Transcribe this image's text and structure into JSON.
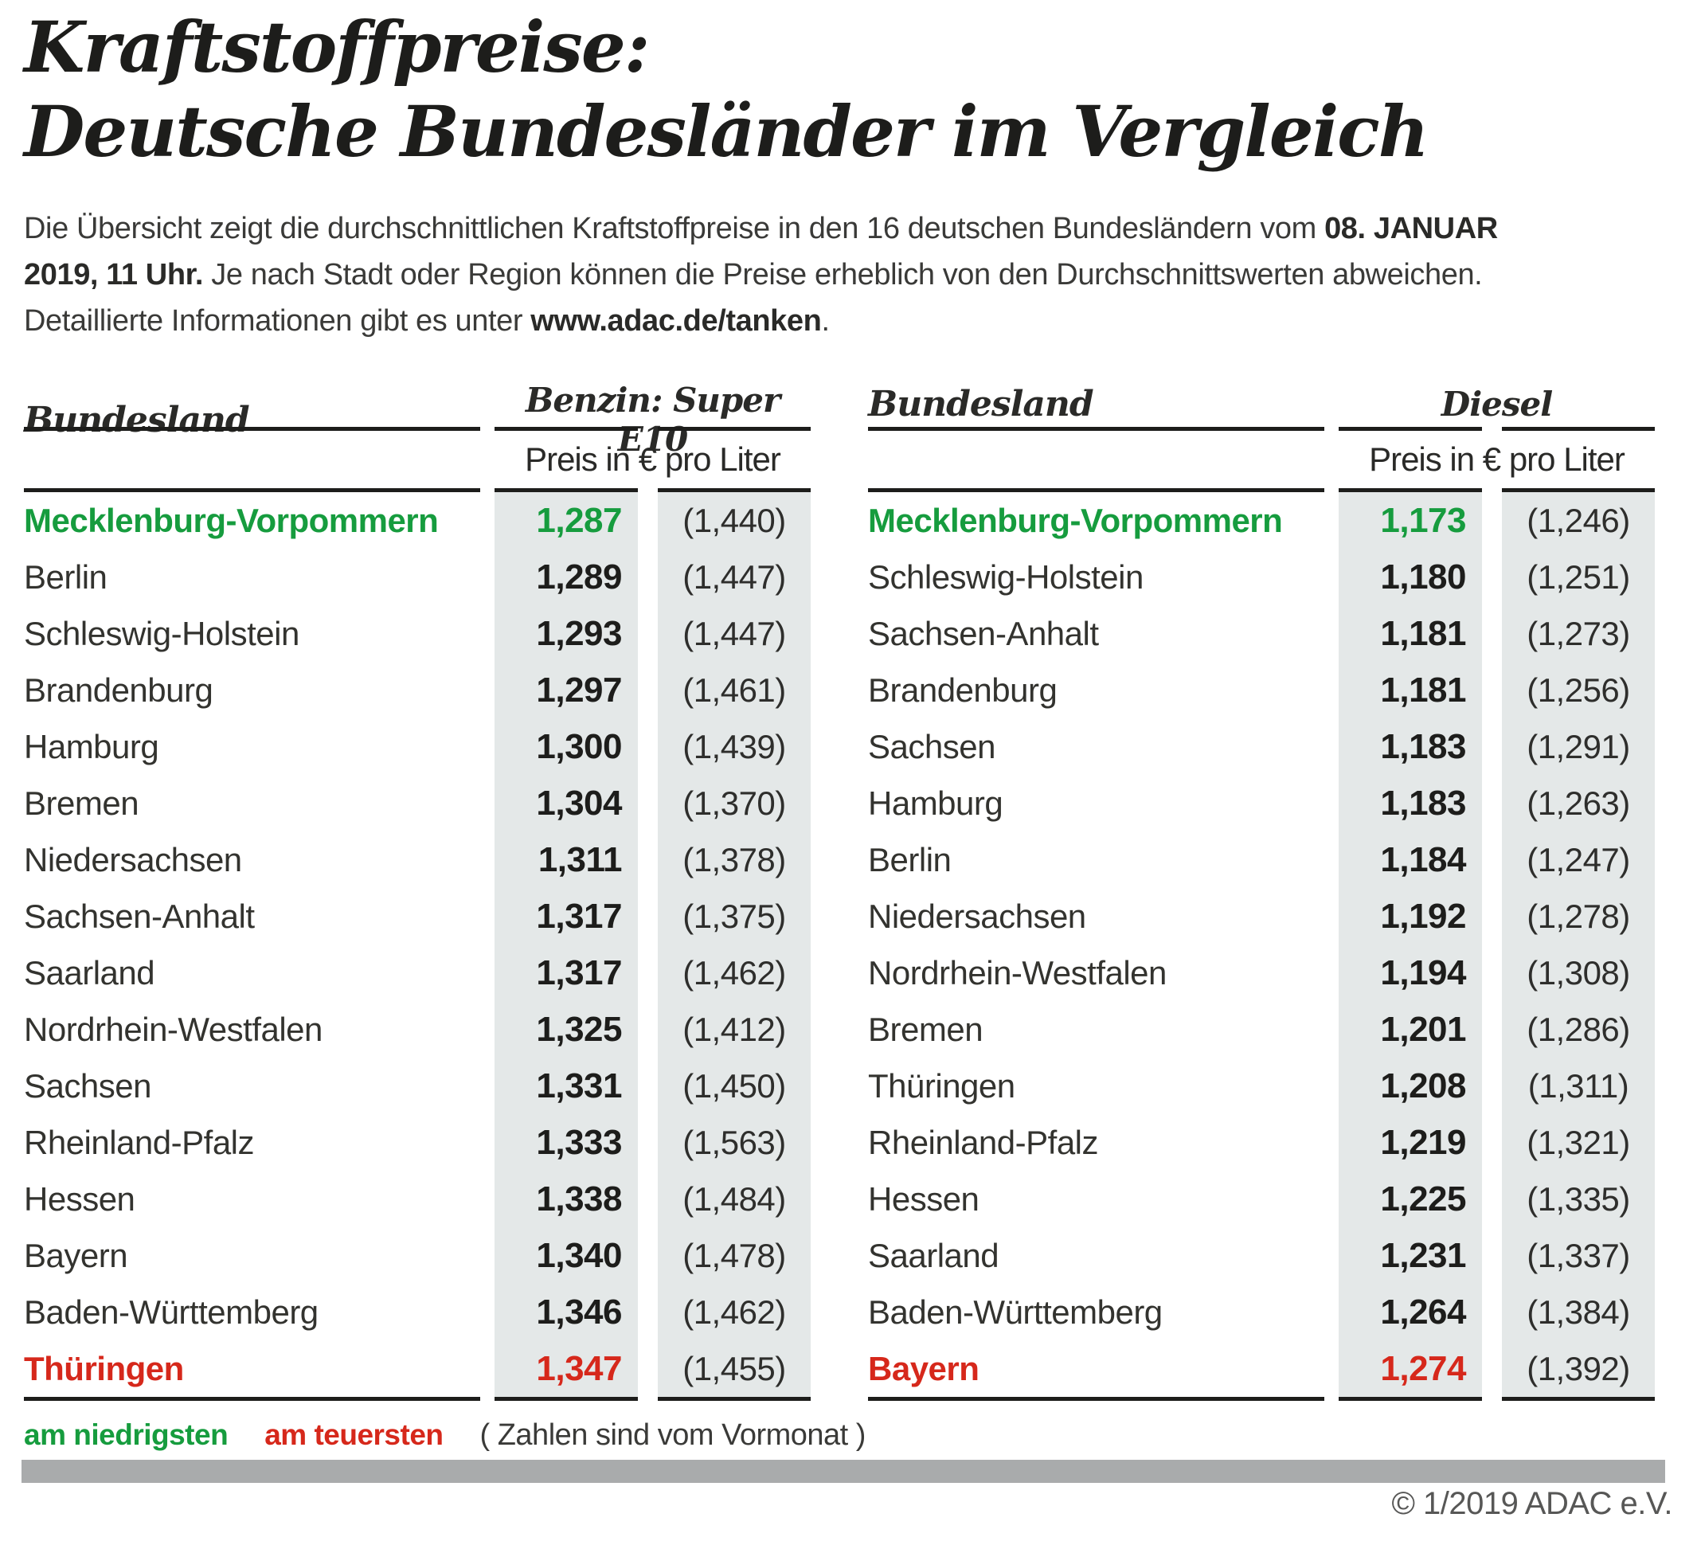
{
  "title": {
    "line1": "Kraftstoffpreise:",
    "line2": "Deutsche Bundesländer im Vergleich"
  },
  "intro": {
    "line1_regular": "Die Übersicht zeigt die durchschnittlichen Kraftstoffpreise in den 16 deutschen Bundesländern vom ",
    "line1_bold": "08. JANUAR",
    "line2_bold": "2019, 11 Uhr.",
    "line2_regular": " Je nach Stadt oder Region können die Preise erheblich von den Durchschnittswerten abweichen.",
    "line3_regular": "Detaillierte Informationen gibt es unter ",
    "line3_bold": "www.adac.de/tanken",
    "line3_end": "."
  },
  "tables": [
    {
      "col_header": "Bundesland",
      "fuel_header": "Benzin: Super E10",
      "unit_header": "Preis in € pro Liter",
      "rows": [
        {
          "name": "Mecklenburg-Vorpommern",
          "price": "1,287",
          "prev": "(1,440)",
          "highlight": "green"
        },
        {
          "name": "Berlin",
          "price": "1,289",
          "prev": "(1,447)"
        },
        {
          "name": "Schleswig-Holstein",
          "price": "1,293",
          "prev": "(1,447)"
        },
        {
          "name": "Brandenburg",
          "price": "1,297",
          "prev": "(1,461)"
        },
        {
          "name": "Hamburg",
          "price": "1,300",
          "prev": "(1,439)"
        },
        {
          "name": "Bremen",
          "price": "1,304",
          "prev": "(1,370)"
        },
        {
          "name": "Niedersachsen",
          "price": "1,311",
          "prev": "(1,378)"
        },
        {
          "name": "Sachsen-Anhalt",
          "price": "1,317",
          "prev": "(1,375)"
        },
        {
          "name": "Saarland",
          "price": "1,317",
          "prev": "(1,462)"
        },
        {
          "name": "Nordrhein-Westfalen",
          "price": "1,325",
          "prev": "(1,412)"
        },
        {
          "name": "Sachsen",
          "price": "1,331",
          "prev": "(1,450)"
        },
        {
          "name": "Rheinland-Pfalz",
          "price": "1,333",
          "prev": "(1,563)"
        },
        {
          "name": "Hessen",
          "price": "1,338",
          "prev": "(1,484)"
        },
        {
          "name": "Bayern",
          "price": "1,340",
          "prev": "(1,478)"
        },
        {
          "name": "Baden-Württemberg",
          "price": "1,346",
          "prev": "(1,462)"
        },
        {
          "name": "Thüringen",
          "price": "1,347",
          "prev": "(1,455)",
          "highlight": "red"
        }
      ]
    },
    {
      "col_header": "Bundesland",
      "fuel_header": "Diesel",
      "unit_header": "Preis in € pro Liter",
      "rows": [
        {
          "name": "Mecklenburg-Vorpommern",
          "price": "1,173",
          "prev": "(1,246)",
          "highlight": "green"
        },
        {
          "name": "Schleswig-Holstein",
          "price": "1,180",
          "prev": "(1,251)"
        },
        {
          "name": "Sachsen-Anhalt",
          "price": "1,181",
          "prev": "(1,273)"
        },
        {
          "name": "Brandenburg",
          "price": "1,181",
          "prev": "(1,256)"
        },
        {
          "name": "Sachsen",
          "price": "1,183",
          "prev": "(1,291)"
        },
        {
          "name": "Hamburg",
          "price": "1,183",
          "prev": "(1,263)"
        },
        {
          "name": "Berlin",
          "price": "1,184",
          "prev": "(1,247)"
        },
        {
          "name": "Niedersachsen",
          "price": "1,192",
          "prev": "(1,278)"
        },
        {
          "name": "Nordrhein-Westfalen",
          "price": "1,194",
          "prev": "(1,308)"
        },
        {
          "name": "Bremen",
          "price": "1,201",
          "prev": "(1,286)"
        },
        {
          "name": "Thüringen",
          "price": "1,208",
          "prev": "(1,311)"
        },
        {
          "name": "Rheinland-Pfalz",
          "price": "1,219",
          "prev": "(1,321)"
        },
        {
          "name": "Hessen",
          "price": "1,225",
          "prev": "(1,335)"
        },
        {
          "name": "Saarland",
          "price": "1,231",
          "prev": "(1,337)"
        },
        {
          "name": "Baden-Württemberg",
          "price": "1,264",
          "prev": "(1,384)"
        },
        {
          "name": "Bayern",
          "price": "1,274",
          "prev": "(1,392)",
          "highlight": "red"
        }
      ]
    }
  ],
  "legend": {
    "lowest": "am niedrigsten",
    "highest": "am teuersten",
    "note": "( Zahlen sind vom Vormonat )"
  },
  "footer": {
    "copyright": "© 1/2019 ADAC e.V."
  },
  "colors": {
    "green_lowest": "#169c3e",
    "red_highest": "#d6281b",
    "column_background": "#e4e8e8",
    "bottom_bar": "#a9abac"
  },
  "chart_data": [
    {
      "type": "table",
      "title": "Benzin: Super E10 — Preis in € pro Liter (08. Januar 2019, 11 Uhr)",
      "columns": [
        "Bundesland",
        "Preis in € pro Liter",
        "Vormonat"
      ],
      "rows": [
        [
          "Mecklenburg-Vorpommern",
          1.287,
          1.44
        ],
        [
          "Berlin",
          1.289,
          1.447
        ],
        [
          "Schleswig-Holstein",
          1.293,
          1.447
        ],
        [
          "Brandenburg",
          1.297,
          1.461
        ],
        [
          "Hamburg",
          1.3,
          1.439
        ],
        [
          "Bremen",
          1.304,
          1.37
        ],
        [
          "Niedersachsen",
          1.311,
          1.378
        ],
        [
          "Sachsen-Anhalt",
          1.317,
          1.375
        ],
        [
          "Saarland",
          1.317,
          1.462
        ],
        [
          "Nordrhein-Westfalen",
          1.325,
          1.412
        ],
        [
          "Sachsen",
          1.331,
          1.45
        ],
        [
          "Rheinland-Pfalz",
          1.333,
          1.563
        ],
        [
          "Hessen",
          1.338,
          1.484
        ],
        [
          "Bayern",
          1.34,
          1.478
        ],
        [
          "Baden-Württemberg",
          1.346,
          1.462
        ],
        [
          "Thüringen",
          1.347,
          1.455
        ]
      ],
      "annotations": {
        "lowest": "Mecklenburg-Vorpommern",
        "highest": "Thüringen"
      }
    },
    {
      "type": "table",
      "title": "Diesel — Preis in € pro Liter (08. Januar 2019, 11 Uhr)",
      "columns": [
        "Bundesland",
        "Preis in € pro Liter",
        "Vormonat"
      ],
      "rows": [
        [
          "Mecklenburg-Vorpommern",
          1.173,
          1.246
        ],
        [
          "Schleswig-Holstein",
          1.18,
          1.251
        ],
        [
          "Sachsen-Anhalt",
          1.181,
          1.273
        ],
        [
          "Brandenburg",
          1.181,
          1.256
        ],
        [
          "Sachsen",
          1.183,
          1.291
        ],
        [
          "Hamburg",
          1.183,
          1.263
        ],
        [
          "Berlin",
          1.184,
          1.247
        ],
        [
          "Niedersachsen",
          1.192,
          1.278
        ],
        [
          "Nordrhein-Westfalen",
          1.194,
          1.308
        ],
        [
          "Bremen",
          1.201,
          1.286
        ],
        [
          "Thüringen",
          1.208,
          1.311
        ],
        [
          "Rheinland-Pfalz",
          1.219,
          1.321
        ],
        [
          "Hessen",
          1.225,
          1.335
        ],
        [
          "Saarland",
          1.231,
          1.337
        ],
        [
          "Baden-Württemberg",
          1.264,
          1.384
        ],
        [
          "Bayern",
          1.274,
          1.392
        ]
      ],
      "annotations": {
        "lowest": "Mecklenburg-Vorpommern",
        "highest": "Bayern"
      }
    }
  ]
}
